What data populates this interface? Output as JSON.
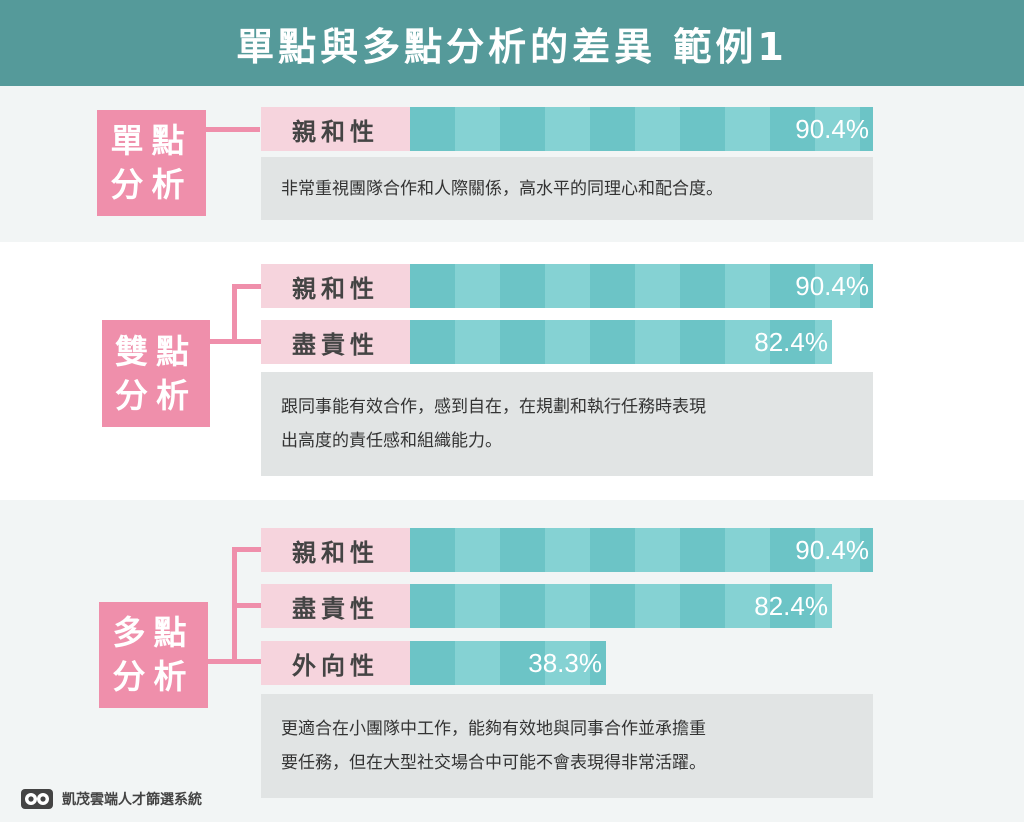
{
  "title": "單點與多點分析的差異 範例1",
  "colors": {
    "header": "#559a9a",
    "tag": "#ef8fab",
    "trait_label_bg": "#f6d4dd",
    "bar_dark": "#6cc4c6",
    "bar_light": "#85d2d3",
    "desc_bg": "#e1e4e4"
  },
  "sections": [
    {
      "tag": [
        "單點",
        "分析"
      ],
      "traits": [
        {
          "label": "親和性",
          "value": 90.4,
          "value_text": "90.4%"
        }
      ],
      "description": [
        "非常重視團隊合作和人際關係，高水平的同理心和配合度。"
      ]
    },
    {
      "tag": [
        "雙點",
        "分析"
      ],
      "traits": [
        {
          "label": "親和性",
          "value": 90.4,
          "value_text": "90.4%"
        },
        {
          "label": "盡責性",
          "value": 82.4,
          "value_text": "82.4%"
        }
      ],
      "description": [
        "跟同事能有效合作，感到自在，在規劃和執行任務時表現",
        "出高度的責任感和組織能力。"
      ]
    },
    {
      "tag": [
        "多點",
        "分析"
      ],
      "traits": [
        {
          "label": "親和性",
          "value": 90.4,
          "value_text": "90.4%"
        },
        {
          "label": "盡責性",
          "value": 82.4,
          "value_text": "82.4%"
        },
        {
          "label": "外向性",
          "value": 38.3,
          "value_text": "38.3%"
        }
      ],
      "description": [
        "更適合在小團隊中工作，能夠有效地與同事合作並承擔重",
        "要任務，但在大型社交場合中可能不會表現得非常活躍。"
      ]
    }
  ],
  "footer": {
    "logo_icon": "owl-face-icon",
    "text": "凱茂雲端人才篩選系統"
  }
}
